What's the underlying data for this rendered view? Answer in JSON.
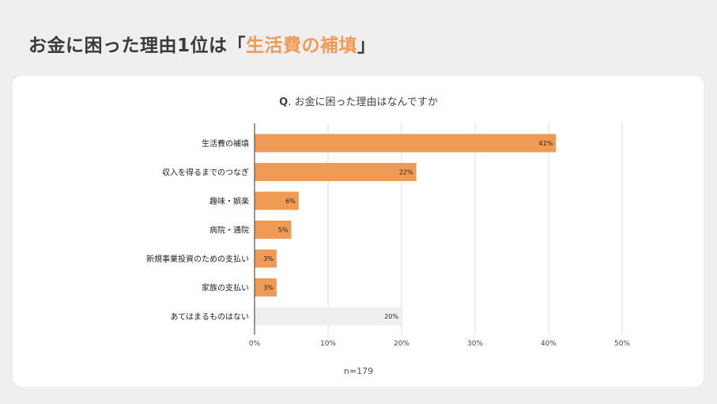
{
  "headline": {
    "prefix": "お金に困った理由1位は「",
    "highlight": "生活費の補填",
    "suffix": "」"
  },
  "chart_data": {
    "type": "bar",
    "orientation": "horizontal",
    "title_prefix": "Q",
    "title": ". お金に困った理由はなんですか",
    "categories": [
      "生活費の補填",
      "収入を得るまでのつなぎ",
      "趣味・娯楽",
      "病院・通院",
      "新規事業投資のための支払い",
      "家族の支払い",
      "あてはまるものはない"
    ],
    "values": [
      41,
      22,
      6,
      5,
      3,
      3,
      20
    ],
    "value_labels": [
      "41%",
      "22%",
      "6%",
      "5%",
      "3%",
      "3%",
      "20%"
    ],
    "bar_colors": [
      "#ef9a55",
      "#ef9a55",
      "#ef9a55",
      "#ef9a55",
      "#ef9a55",
      "#ef9a55",
      "#efefef"
    ],
    "xlim": [
      0,
      50
    ],
    "x_ticks": [
      "0%",
      "10%",
      "20%",
      "30%",
      "40%",
      "50%"
    ],
    "grid": true,
    "note": "n=179"
  }
}
